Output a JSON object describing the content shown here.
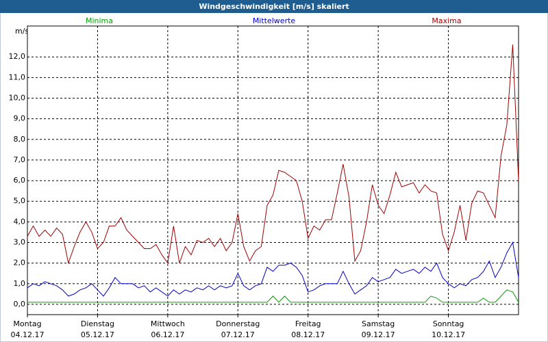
{
  "chart_data": {
    "type": "line",
    "title": "Windgeschwindigkeit [m/s] skaliert",
    "y_unit": "m/s",
    "x": [
      0,
      2,
      4,
      6,
      8,
      10,
      12,
      14,
      16,
      18,
      20,
      22,
      24,
      26,
      28,
      30,
      32,
      34,
      36,
      38,
      40,
      42,
      44,
      46,
      48,
      50,
      52,
      54,
      56,
      58,
      60,
      62,
      64,
      66,
      68,
      70,
      72,
      74,
      76,
      78,
      80,
      82,
      84,
      86,
      88,
      90,
      92,
      94,
      96,
      98,
      100,
      102,
      104,
      106,
      108,
      110,
      112,
      114,
      116,
      118,
      120,
      122,
      124,
      126,
      128,
      130,
      132,
      134,
      136,
      138,
      140,
      142,
      144,
      146,
      148,
      150,
      152,
      154,
      156,
      158,
      160,
      162,
      164,
      166,
      168
    ],
    "xlim": [
      0,
      168
    ],
    "xticks": [
      {
        "value": 0,
        "label": "Montag"
      },
      {
        "value": 24,
        "label": "Dienstag"
      },
      {
        "value": 48,
        "label": "Mittwoch"
      },
      {
        "value": 72,
        "label": "Donnerstag"
      },
      {
        "value": 96,
        "label": "Freitag"
      },
      {
        "value": 120,
        "label": "Samstag"
      },
      {
        "value": 144,
        "label": "Sonntag"
      }
    ],
    "xtick_dates": [
      "04.12.17",
      "05.12.17",
      "06.12.17",
      "07.12.17",
      "08.12.17",
      "09.12.17",
      "10.12.17"
    ],
    "ylim": [
      -0.5,
      13.5
    ],
    "yticks": [
      {
        "value": 0,
        "label": "0,0"
      },
      {
        "value": 1,
        "label": "1,0"
      },
      {
        "value": 2,
        "label": "2,0"
      },
      {
        "value": 3,
        "label": "3,0"
      },
      {
        "value": 4,
        "label": "4,0"
      },
      {
        "value": 5,
        "label": "5,0"
      },
      {
        "value": 6,
        "label": "6,0"
      },
      {
        "value": 7,
        "label": "7,0"
      },
      {
        "value": 8,
        "label": "8,0"
      },
      {
        "value": 9,
        "label": "9,0"
      },
      {
        "value": 10,
        "label": "10,0"
      },
      {
        "value": 11,
        "label": "11,0"
      },
      {
        "value": 12,
        "label": "12,0"
      }
    ],
    "grid": true,
    "series": [
      {
        "name": "Minima",
        "color": "#00a000",
        "values": [
          0.1,
          0.1,
          0.1,
          0.1,
          0.1,
          0.1,
          0.1,
          0.1,
          0.1,
          0.1,
          0.1,
          0.1,
          0.1,
          0.1,
          0.1,
          0.1,
          0.1,
          0.1,
          0.1,
          0.1,
          0.1,
          0.1,
          0.1,
          0.1,
          0.1,
          0.1,
          0.1,
          0.1,
          0.1,
          0.1,
          0.1,
          0.1,
          0.1,
          0.1,
          0.1,
          0.1,
          0.1,
          0.1,
          0.1,
          0.1,
          0.1,
          0.1,
          0.4,
          0.1,
          0.4,
          0.1,
          0.1,
          0.1,
          0.1,
          0.1,
          0.1,
          0.1,
          0.1,
          0.1,
          0.1,
          0.1,
          0.1,
          0.1,
          0.1,
          0.1,
          0.1,
          0.1,
          0.1,
          0.1,
          0.1,
          0.1,
          0.1,
          0.1,
          0.1,
          0.4,
          0.3,
          0.1,
          0.1,
          0.1,
          0.1,
          0.1,
          0.1,
          0.1,
          0.3,
          0.1,
          0.1,
          0.4,
          0.7,
          0.6,
          0.1
        ]
      },
      {
        "name": "Mittelwerte",
        "color": "#0000c8",
        "values": [
          0.8,
          1.0,
          0.9,
          1.1,
          1.0,
          0.9,
          0.7,
          0.4,
          0.5,
          0.7,
          0.8,
          1.0,
          0.7,
          0.4,
          0.8,
          1.3,
          1.0,
          1.0,
          1.0,
          0.8,
          0.9,
          0.6,
          0.8,
          0.6,
          0.4,
          0.7,
          0.5,
          0.7,
          0.6,
          0.8,
          0.7,
          0.9,
          0.7,
          0.9,
          0.8,
          0.9,
          1.5,
          0.9,
          0.7,
          0.9,
          1.0,
          1.8,
          1.6,
          1.9,
          1.9,
          2.0,
          1.8,
          1.4,
          0.6,
          0.7,
          0.9,
          1.0,
          1.0,
          1.0,
          1.6,
          1.0,
          0.5,
          0.7,
          0.9,
          1.3,
          1.1,
          1.2,
          1.3,
          1.7,
          1.5,
          1.6,
          1.7,
          1.5,
          1.8,
          1.6,
          2.0,
          1.3,
          1.0,
          0.8,
          1.0,
          0.9,
          1.2,
          1.3,
          1.6,
          2.1,
          1.3,
          1.8,
          2.5,
          3.0,
          1.3
        ]
      },
      {
        "name": "Maxima",
        "color": "#a00000",
        "values": [
          3.3,
          3.8,
          3.3,
          3.6,
          3.3,
          3.7,
          3.4,
          2.0,
          2.8,
          3.5,
          4.0,
          3.5,
          2.7,
          3.0,
          3.8,
          3.8,
          4.2,
          3.6,
          3.3,
          3.0,
          2.7,
          2.7,
          2.9,
          2.4,
          2.0,
          3.8,
          2.0,
          2.8,
          2.4,
          3.1,
          3.0,
          3.2,
          2.8,
          3.2,
          2.6,
          3.0,
          4.4,
          2.8,
          2.1,
          2.6,
          2.8,
          4.8,
          5.3,
          6.5,
          6.4,
          6.2,
          6.0,
          5.0,
          3.2,
          3.8,
          3.6,
          4.1,
          4.1,
          5.4,
          6.8,
          5.2,
          2.1,
          2.6,
          4.0,
          5.8,
          4.8,
          4.4,
          5.3,
          6.4,
          5.7,
          5.8,
          5.9,
          5.4,
          5.8,
          5.5,
          5.4,
          3.4,
          2.6,
          3.5,
          4.8,
          3.1,
          4.9,
          5.5,
          5.4,
          4.8,
          4.2,
          7.2,
          8.7,
          12.6,
          6.0
        ]
      }
    ]
  }
}
